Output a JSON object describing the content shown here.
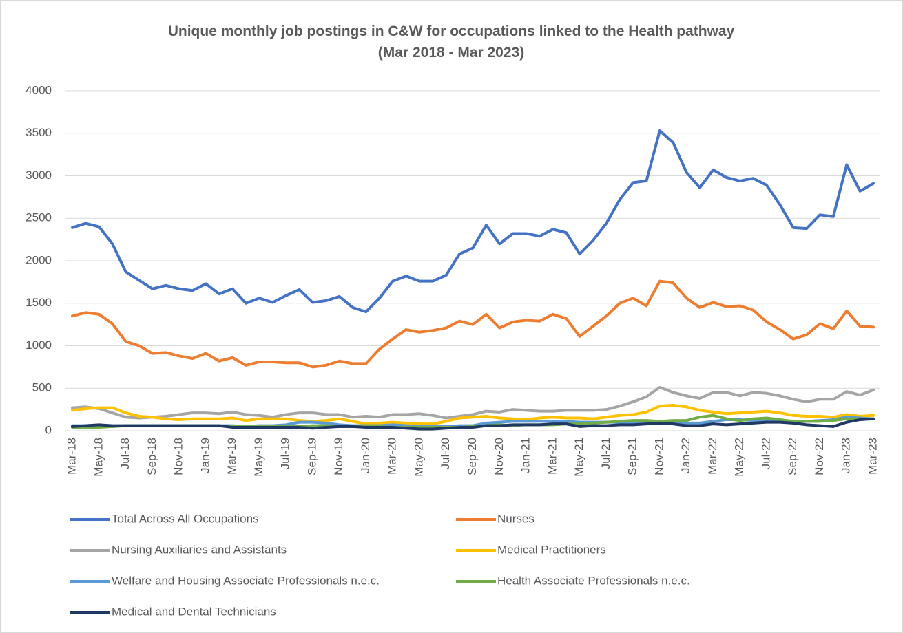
{
  "chart_data": {
    "type": "line",
    "title": "Unique monthly job postings in C&W for occupations linked to the Health pathway",
    "subtitle": "(Mar 2018 - Mar 2023)",
    "categories": [
      "Mar-18",
      null,
      "May-18",
      null,
      "Jul-18",
      null,
      "Sep-18",
      null,
      "Nov-18",
      null,
      "Jan-19",
      null,
      "Mar-19",
      null,
      "May-19",
      null,
      "Jul-19",
      null,
      "Sep-19",
      null,
      "Nov-19",
      null,
      "Jan-20",
      null,
      "Mar-20",
      null,
      "May-20",
      null,
      "Jul-20",
      null,
      "Sep-20",
      null,
      "Nov-20",
      null,
      "Jan-21",
      null,
      "Mar-21",
      null,
      "May-21",
      null,
      "Jul-21",
      null,
      "Sep-21",
      null,
      "Nov-21",
      null,
      "Jan-22",
      null,
      "Mar-22",
      null,
      "May-22",
      null,
      "Jul-22",
      null,
      "Sep-22",
      null,
      "Nov-22",
      null,
      "Jan-23",
      null,
      "Mar-23"
    ],
    "ylim": [
      0,
      4000
    ],
    "yticks": [
      0,
      500,
      1000,
      1500,
      2000,
      2500,
      3000,
      3500,
      4000
    ],
    "grid": true,
    "legend": "bottom",
    "series": [
      {
        "name": "Total Across All Occupations",
        "color": "#4472c4",
        "values": [
          2390,
          2440,
          2400,
          2200,
          1870,
          1770,
          1670,
          1710,
          1670,
          1650,
          1730,
          1610,
          1670,
          1500,
          1560,
          1510,
          1590,
          1660,
          1510,
          1530,
          1580,
          1450,
          1400,
          1560,
          1760,
          1820,
          1760,
          1760,
          1830,
          2080,
          2150,
          2420,
          2200,
          2320,
          2320,
          2290,
          2370,
          2330,
          2080,
          2240,
          2440,
          2720,
          2920,
          2940,
          3530,
          3390,
          3040,
          2860,
          3070,
          2980,
          2940,
          2970,
          2890,
          2660,
          2390,
          2380,
          2540,
          2520,
          3130,
          2820,
          2910
        ]
      },
      {
        "name": "Nurses",
        "color": "#ed7d31",
        "values": [
          1350,
          1390,
          1370,
          1260,
          1050,
          1000,
          910,
          920,
          880,
          850,
          910,
          820,
          860,
          770,
          810,
          810,
          800,
          800,
          750,
          770,
          820,
          790,
          790,
          960,
          1080,
          1190,
          1160,
          1180,
          1210,
          1290,
          1250,
          1370,
          1210,
          1280,
          1300,
          1290,
          1370,
          1320,
          1110,
          1230,
          1350,
          1500,
          1560,
          1470,
          1760,
          1740,
          1560,
          1450,
          1510,
          1460,
          1470,
          1420,
          1280,
          1190,
          1080,
          1130,
          1260,
          1200,
          1410,
          1230,
          1220
        ]
      },
      {
        "name": "Nursing Auxiliaries and Assistants",
        "color": "#a5a5a5",
        "values": [
          270,
          280,
          260,
          210,
          160,
          150,
          160,
          170,
          190,
          210,
          210,
          200,
          220,
          190,
          180,
          160,
          190,
          210,
          210,
          190,
          190,
          160,
          170,
          160,
          190,
          190,
          200,
          180,
          150,
          170,
          190,
          230,
          220,
          250,
          240,
          230,
          230,
          240,
          240,
          240,
          250,
          290,
          340,
          400,
          510,
          450,
          410,
          380,
          450,
          450,
          410,
          450,
          440,
          410,
          370,
          340,
          370,
          370,
          460,
          420,
          480
        ]
      },
      {
        "name": "Medical Practitioners",
        "color": "#ffc000",
        "values": [
          240,
          260,
          270,
          270,
          210,
          170,
          160,
          140,
          130,
          140,
          140,
          140,
          150,
          120,
          140,
          140,
          140,
          120,
          110,
          120,
          140,
          110,
          80,
          90,
          100,
          90,
          80,
          80,
          110,
          150,
          160,
          170,
          150,
          140,
          130,
          150,
          160,
          150,
          150,
          140,
          160,
          180,
          190,
          220,
          290,
          300,
          280,
          240,
          220,
          200,
          210,
          220,
          230,
          210,
          180,
          170,
          170,
          160,
          190,
          170,
          180
        ]
      },
      {
        "name": "Welfare and Housing Associate Professionals n.e.c.",
        "color": "#5b9bd5",
        "values": [
          60,
          60,
          60,
          50,
          60,
          60,
          60,
          60,
          60,
          60,
          60,
          60,
          60,
          50,
          60,
          60,
          70,
          100,
          100,
          90,
          70,
          60,
          60,
          60,
          70,
          60,
          50,
          50,
          50,
          60,
          60,
          90,
          100,
          110,
          110,
          110,
          110,
          110,
          100,
          100,
          100,
          100,
          100,
          100,
          100,
          100,
          90,
          90,
          110,
          130,
          130,
          120,
          120,
          110,
          110,
          110,
          120,
          130,
          160,
          150,
          140
        ]
      },
      {
        "name": "Health Associate Professionals n.e.c.",
        "color": "#70ad47",
        "values": [
          40,
          40,
          40,
          50,
          60,
          60,
          60,
          60,
          60,
          60,
          60,
          60,
          50,
          50,
          50,
          50,
          50,
          50,
          60,
          60,
          50,
          50,
          50,
          50,
          40,
          40,
          40,
          40,
          40,
          40,
          50,
          60,
          70,
          60,
          70,
          70,
          70,
          80,
          80,
          90,
          100,
          110,
          120,
          120,
          110,
          120,
          120,
          160,
          180,
          140,
          120,
          140,
          150,
          130,
          110,
          110,
          110,
          120,
          140,
          140,
          140
        ]
      },
      {
        "name": "Medical and Dental Technicians",
        "color": "#203864",
        "values": [
          50,
          60,
          70,
          60,
          60,
          60,
          60,
          60,
          60,
          60,
          60,
          60,
          40,
          40,
          40,
          40,
          40,
          40,
          30,
          40,
          50,
          50,
          40,
          40,
          40,
          30,
          20,
          20,
          30,
          40,
          40,
          60,
          60,
          70,
          70,
          70,
          80,
          80,
          50,
          60,
          60,
          70,
          70,
          80,
          90,
          80,
          60,
          60,
          80,
          70,
          80,
          90,
          100,
          100,
          90,
          70,
          60,
          50,
          100,
          130,
          140
        ]
      }
    ]
  }
}
